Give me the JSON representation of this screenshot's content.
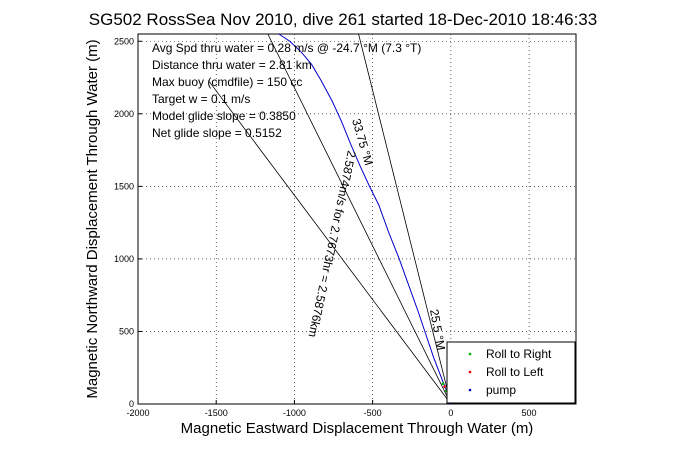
{
  "chart_data": {
    "type": "line",
    "title": "SG502 RossSea Nov 2010, dive 261 started 18-Dec-2010 18:46:33",
    "xlabel": "Magnetic Eastward Displacement Through Water (m)",
    "ylabel": "Magnetic Northward Displacement Through Water (m)",
    "xlim": [
      -2000,
      800
    ],
    "ylim": [
      0,
      2550
    ],
    "xticks": [
      -2000,
      -1500,
      -1000,
      -500,
      0,
      500
    ],
    "yticks": [
      0,
      500,
      1000,
      1500,
      2000,
      2500
    ],
    "grid": true,
    "annotations": [
      "Avg Spd thru water = 0.28 m/s @ -24.7 °M (7.3 °T)",
      "Distance thru water = 2.81 km",
      "Max buoy (cmdfile) = 150 cc",
      "Target w = 0.1 m/s",
      "Model glide slope = 0.3850",
      "Net glide slope = 0.5152"
    ],
    "heading_label": "33.75 °M",
    "range_label": "2.5874m/s for 2.7673hr = 2.5876km",
    "near_origin_label": "25.5 °M",
    "series": [
      {
        "name": "track",
        "color": "#0000cc",
        "x": [
          0,
          -20,
          -60,
          -110,
          -160,
          -210,
          -270,
          -330,
          -400,
          -460,
          -520,
          -580,
          -640,
          -700,
          -760,
          -830,
          -890,
          -960,
          -1030,
          -1100
        ],
        "y": [
          0,
          70,
          180,
          320,
          480,
          640,
          820,
          1000,
          1190,
          1370,
          1500,
          1640,
          1790,
          1950,
          2090,
          2230,
          2340,
          2430,
          2500,
          2550
        ]
      },
      {
        "name": "Roll to Right",
        "color": "#00b000",
        "x": [
          -10,
          -30,
          -50
        ],
        "y": [
          30,
          90,
          140
        ]
      },
      {
        "name": "Roll to Left",
        "color": "#dd0000",
        "x": [
          -20,
          -40
        ],
        "y": [
          60,
          120
        ]
      },
      {
        "name": "pump",
        "color": "#0000cc",
        "x": [
          -5
        ],
        "y": [
          10
        ]
      }
    ],
    "guide_lines": [
      {
        "x": [
          0,
          -1170
        ],
        "y": [
          0,
          2550
        ],
        "color": "#000000"
      },
      {
        "x": [
          0,
          -590
        ],
        "y": [
          0,
          2550
        ],
        "color": "#000000"
      },
      {
        "x": [
          0,
          -1550
        ],
        "y": [
          0,
          2230
        ],
        "color": "#000000"
      }
    ],
    "legend": {
      "position": "bottom-right",
      "entries": [
        {
          "label": "Roll to Right",
          "color": "#00b000"
        },
        {
          "label": "Roll to Left",
          "color": "#dd0000"
        },
        {
          "label": "pump",
          "color": "#0000cc"
        }
      ]
    }
  }
}
